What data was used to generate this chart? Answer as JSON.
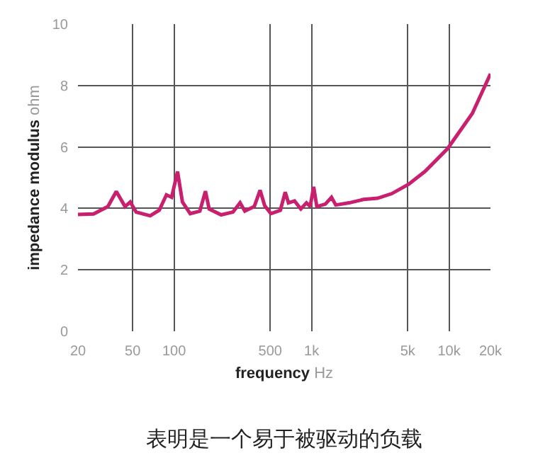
{
  "chart_data": {
    "type": "line",
    "xlabel": "frequency Hz",
    "ylabel": "impedance modulus ohm",
    "log": "x",
    "x": [
      20,
      26,
      33,
      38,
      44,
      48,
      53,
      67,
      78,
      88,
      96,
      106,
      115,
      131,
      154,
      169,
      180,
      220,
      268,
      302,
      327,
      383,
      422,
      456,
      506,
      593,
      643,
      679,
      752,
      835,
      918,
      977,
      1035,
      1092,
      1259,
      1396,
      1500,
      1875,
      2380,
      3020,
      3830,
      5090,
      6670,
      9770,
      14760,
      20000
    ],
    "series": [
      {
        "color": "#c8206e",
        "values": [
          3.8,
          3.82,
          4.06,
          4.55,
          4.06,
          4.21,
          3.88,
          3.76,
          3.94,
          4.44,
          4.36,
          5.2,
          4.21,
          3.83,
          3.91,
          4.56,
          3.98,
          3.79,
          3.88,
          4.18,
          3.91,
          4.06,
          4.59,
          4.09,
          3.83,
          3.94,
          4.53,
          4.18,
          4.24,
          3.98,
          4.18,
          4.06,
          4.7,
          4.06,
          4.14,
          4.36,
          4.11,
          4.18,
          4.29,
          4.33,
          4.48,
          4.79,
          5.2,
          5.95,
          7.09,
          8.38
        ]
      }
    ],
    "xlim": [
      20,
      20000
    ],
    "xticks": [
      20,
      50,
      100,
      500,
      {
        "value": 1000,
        "label": "1k"
      },
      {
        "value": 5000,
        "label": "5k"
      },
      {
        "value": 10000,
        "label": "10k"
      },
      {
        "value": 20000,
        "label": "20k"
      }
    ],
    "ylim": [
      0,
      10
    ],
    "yticks": [
      0,
      2,
      4,
      6,
      8,
      10
    ],
    "grid": true,
    "marker": "none",
    "line_style": "solid",
    "annotations": [
      "表明是一个易于被驱动的负载"
    ]
  }
}
